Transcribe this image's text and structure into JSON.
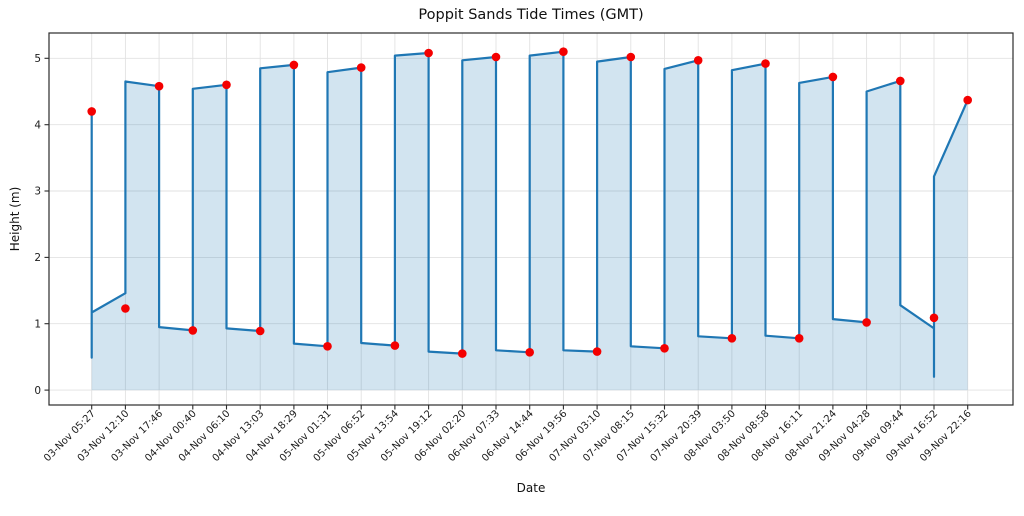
{
  "figure": {
    "title": "Poppit Sands Tide Times (GMT)",
    "xlabel": "Date",
    "ylabel": "Height (m)"
  },
  "chart_data": {
    "type": "line",
    "title": "Poppit Sands Tide Times (GMT)",
    "xlabel": "Date",
    "ylabel": "Height (m)",
    "grid": true,
    "legend": false,
    "background": "#ffffff",
    "grid_color": "#e2e2e2",
    "axis_color": "#2b2b2b",
    "yticks": [
      0,
      1,
      2,
      3,
      4,
      5
    ],
    "ylim": [
      -0.22,
      5.38
    ],
    "categories": [
      "03-Nov 05:27",
      "03-Nov 12:10",
      "03-Nov 17:46",
      "04-Nov 00:40",
      "04-Nov 06:10",
      "04-Nov 13:03",
      "04-Nov 18:29",
      "05-Nov 01:31",
      "05-Nov 06:52",
      "05-Nov 13:54",
      "05-Nov 19:12",
      "06-Nov 02:20",
      "06-Nov 07:33",
      "06-Nov 14:44",
      "06-Nov 19:56",
      "07-Nov 03:10",
      "07-Nov 08:15",
      "07-Nov 15:32",
      "07-Nov 20:39",
      "08-Nov 03:50",
      "08-Nov 08:58",
      "08-Nov 16:11",
      "08-Nov 21:24",
      "09-Nov 04:28",
      "09-Nov 09:44",
      "09-Nov 16:52",
      "09-Nov 22:16"
    ],
    "events": [
      {
        "label": "03-Nov 05:27",
        "height": 4.2,
        "type": "high"
      },
      {
        "label": "03-Nov 12:10",
        "height": 1.23,
        "type": "low"
      },
      {
        "label": "03-Nov 17:46",
        "height": 4.58,
        "type": "high"
      },
      {
        "label": "04-Nov 00:40",
        "height": 0.9,
        "type": "low"
      },
      {
        "label": "04-Nov 06:10",
        "height": 4.6,
        "type": "high"
      },
      {
        "label": "04-Nov 13:03",
        "height": 0.89,
        "type": "low"
      },
      {
        "label": "04-Nov 18:29",
        "height": 4.9,
        "type": "high"
      },
      {
        "label": "05-Nov 01:31",
        "height": 0.66,
        "type": "low"
      },
      {
        "label": "05-Nov 06:52",
        "height": 4.86,
        "type": "high"
      },
      {
        "label": "05-Nov 13:54",
        "height": 0.67,
        "type": "low"
      },
      {
        "label": "05-Nov 19:12",
        "height": 5.08,
        "type": "high"
      },
      {
        "label": "06-Nov 02:20",
        "height": 0.55,
        "type": "low"
      },
      {
        "label": "06-Nov 07:33",
        "height": 5.02,
        "type": "high"
      },
      {
        "label": "06-Nov 14:44",
        "height": 0.57,
        "type": "low"
      },
      {
        "label": "06-Nov 19:56",
        "height": 5.1,
        "type": "high"
      },
      {
        "label": "07-Nov 03:10",
        "height": 0.58,
        "type": "low"
      },
      {
        "label": "07-Nov 08:15",
        "height": 5.02,
        "type": "high"
      },
      {
        "label": "07-Nov 15:32",
        "height": 0.63,
        "type": "low"
      },
      {
        "label": "07-Nov 20:39",
        "height": 4.97,
        "type": "high"
      },
      {
        "label": "08-Nov 03:50",
        "height": 0.78,
        "type": "low"
      },
      {
        "label": "08-Nov 08:58",
        "height": 4.92,
        "type": "high"
      },
      {
        "label": "08-Nov 16:11",
        "height": 0.78,
        "type": "low"
      },
      {
        "label": "08-Nov 21:24",
        "height": 4.72,
        "type": "high"
      },
      {
        "label": "09-Nov 04:28",
        "height": 1.02,
        "type": "low"
      },
      {
        "label": "09-Nov 09:44",
        "height": 4.66,
        "type": "high"
      },
      {
        "label": "09-Nov 16:52",
        "height": 1.09,
        "type": "low"
      },
      {
        "label": "09-Nov 22:16",
        "height": 4.37,
        "type": "high"
      }
    ],
    "marker": {
      "shape": "circle",
      "color": "#f40000",
      "radius": 4.3
    },
    "series": [
      {
        "name": "tide-height-curve",
        "type": "area-line",
        "color": "#1f77b4",
        "fill_opacity": 0.2,
        "line_width": 2.2,
        "vertices": [
          [
            0,
            0.49
          ],
          [
            0,
            4.2
          ],
          [
            0,
            1.17
          ],
          [
            1,
            1.46
          ],
          [
            1,
            4.65
          ],
          [
            2,
            4.58
          ],
          [
            2,
            0.95
          ],
          [
            3,
            0.9
          ],
          [
            3,
            4.54
          ],
          [
            4,
            4.6
          ],
          [
            4,
            0.93
          ],
          [
            5,
            0.89
          ],
          [
            5,
            4.85
          ],
          [
            6,
            4.9
          ],
          [
            6,
            0.7
          ],
          [
            7,
            0.66
          ],
          [
            7,
            4.79
          ],
          [
            8,
            4.86
          ],
          [
            8,
            0.71
          ],
          [
            9,
            0.67
          ],
          [
            9,
            5.04
          ],
          [
            10,
            5.08
          ],
          [
            10,
            0.58
          ],
          [
            11,
            0.55
          ],
          [
            11,
            4.97
          ],
          [
            12,
            5.02
          ],
          [
            12,
            0.6
          ],
          [
            13,
            0.57
          ],
          [
            13,
            5.04
          ],
          [
            14,
            5.1
          ],
          [
            14,
            0.6
          ],
          [
            15,
            0.58
          ],
          [
            15,
            4.95
          ],
          [
            16,
            5.02
          ],
          [
            16,
            0.66
          ],
          [
            17,
            0.63
          ],
          [
            17,
            4.84
          ],
          [
            18,
            4.97
          ],
          [
            18,
            0.81
          ],
          [
            19,
            0.78
          ],
          [
            19,
            4.82
          ],
          [
            20,
            4.92
          ],
          [
            20,
            0.82
          ],
          [
            21,
            0.78
          ],
          [
            21,
            4.63
          ],
          [
            22,
            4.72
          ],
          [
            22,
            1.07
          ],
          [
            23,
            1.02
          ],
          [
            23,
            4.5
          ],
          [
            24,
            4.66
          ],
          [
            24,
            1.28
          ],
          [
            25,
            0.93
          ],
          [
            25,
            0.2
          ],
          [
            25,
            3.22
          ],
          [
            26,
            4.37
          ]
        ]
      },
      {
        "name": "tide-extremes",
        "type": "scatter",
        "color": "#f40000",
        "uses": "events"
      }
    ]
  }
}
